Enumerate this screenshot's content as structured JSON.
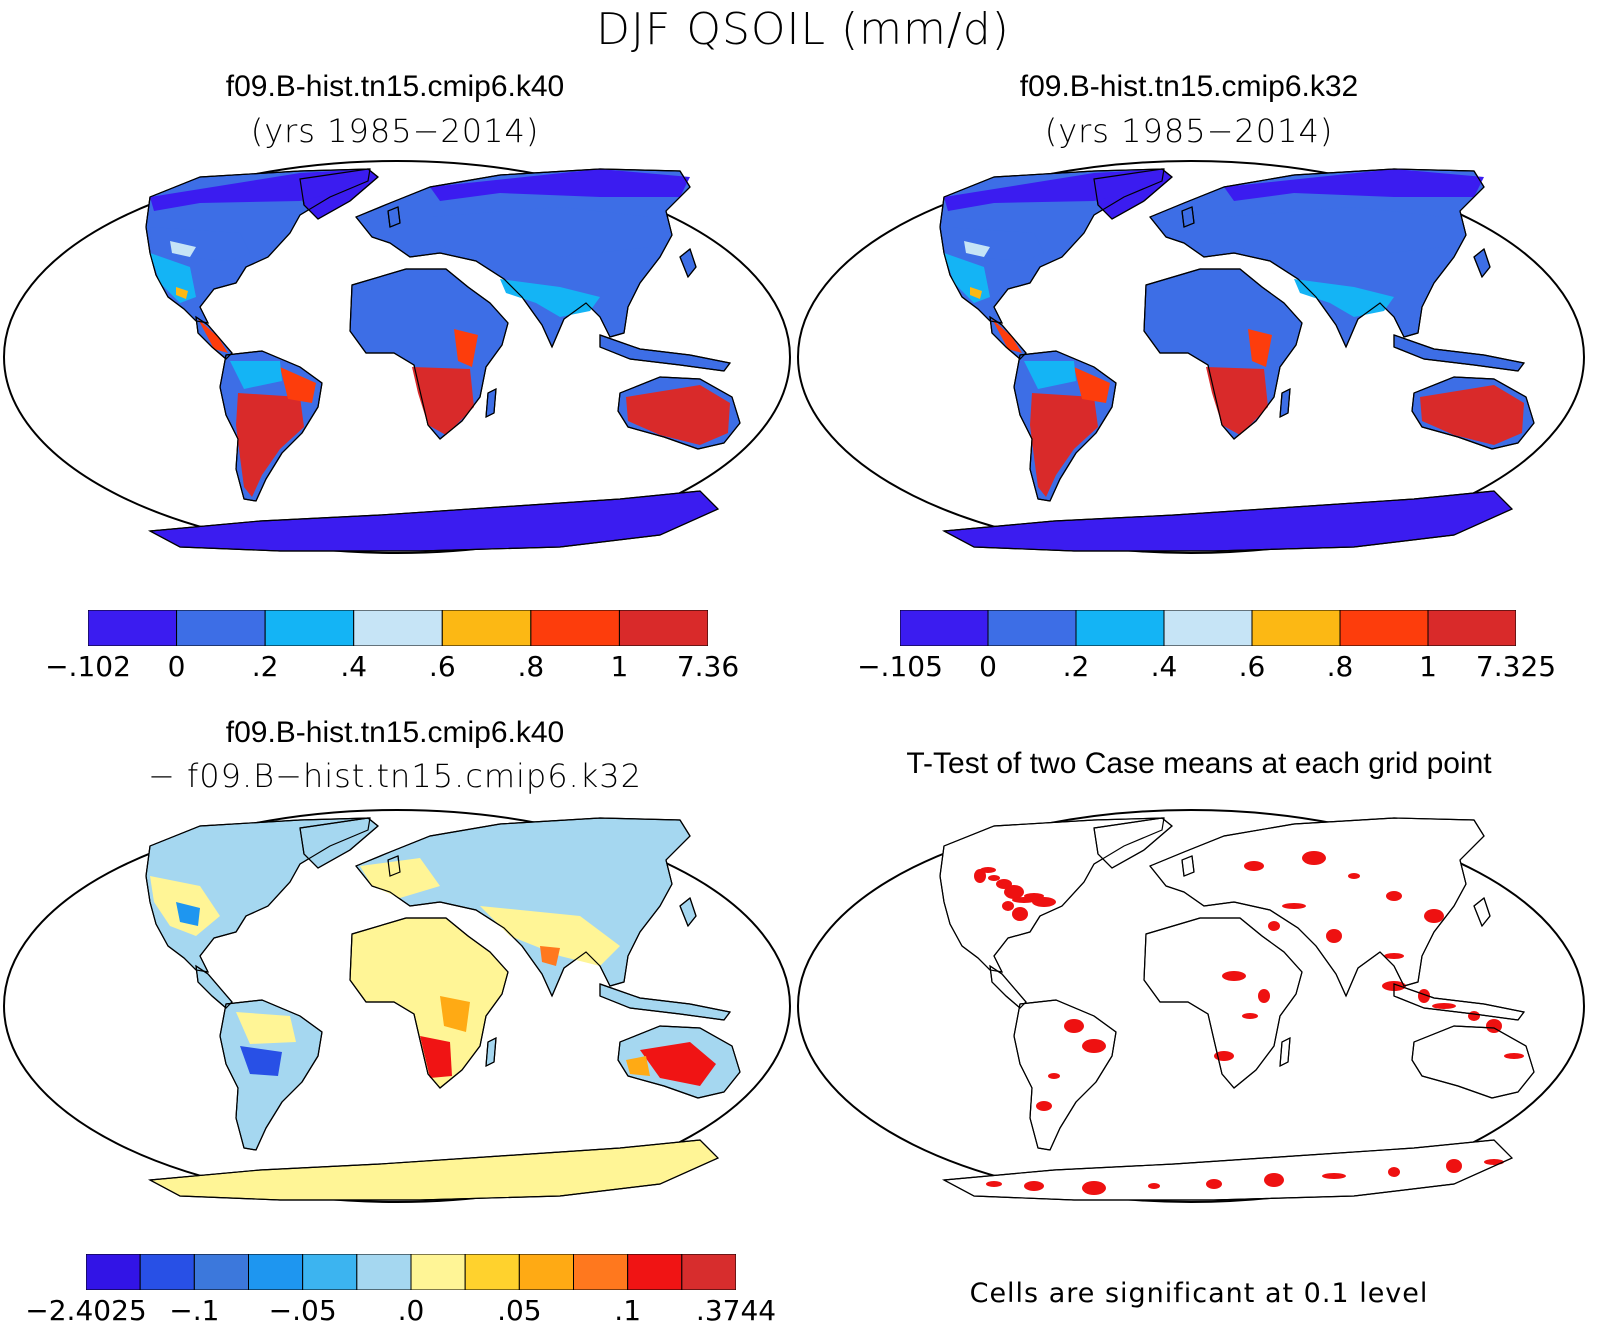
{
  "figure": {
    "title": "DJF QSOIL (mm/d)"
  },
  "panels": [
    {
      "title": "f09.B-hist.tn15.cmip6.k40",
      "subtitle": "(yrs 1985−2014)",
      "colorbar": {
        "colors": [
          "#3b1cf0",
          "#3d6ee6",
          "#14b4f5",
          "#c6e4f6",
          "#fcb814",
          "#fd3d0c",
          "#d92a2a"
        ],
        "labels": [
          "−.102",
          "0",
          ".2",
          ".4",
          ".6",
          ".8",
          "1",
          "7.36"
        ]
      }
    },
    {
      "title": "f09.B-hist.tn15.cmip6.k32",
      "subtitle": "(yrs 1985−2014)",
      "colorbar": {
        "colors": [
          "#3b1cf0",
          "#3d6ee6",
          "#14b4f5",
          "#c6e4f6",
          "#fcb814",
          "#fd3d0c",
          "#d92a2a"
        ],
        "labels": [
          "−.105",
          "0",
          ".2",
          ".4",
          ".6",
          ".8",
          "1",
          "7.325"
        ]
      }
    },
    {
      "title": "f09.B-hist.tn15.cmip6.k40",
      "subtitle": "− f09.B−hist.tn15.cmip6.k32",
      "colorbar": {
        "colors": [
          "#3214e6",
          "#2850e6",
          "#3c78dc",
          "#1e96f0",
          "#3cb4f0",
          "#a5d7f0",
          "#fff596",
          "#ffd22d",
          "#ffaa14",
          "#ff781e",
          "#f01414",
          "#d72d2d"
        ],
        "labels": [
          "−2.4025",
          "−.1",
          "−.05",
          ".0",
          ".05",
          ".1",
          ".3744"
        ]
      }
    },
    {
      "title": "T-Test of two Case means at each grid point",
      "note": "Cells are significant at 0.1 level"
    }
  ],
  "map_colors": {
    "frame": "#000000",
    "ocean": "#ffffff",
    "coast": "#000000",
    "significant": "#ee1111"
  }
}
